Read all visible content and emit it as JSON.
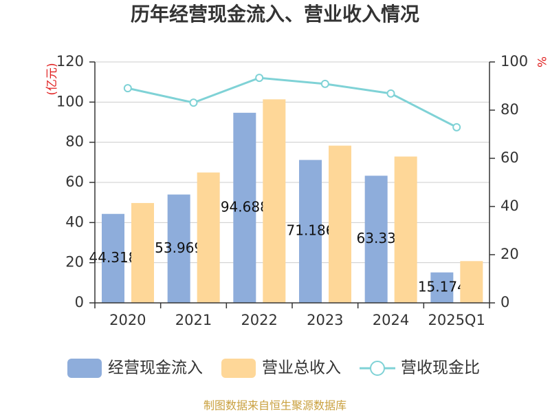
{
  "chart_data": {
    "type": "bar",
    "title": "历年经营现金流入、营业收入情况",
    "categories": [
      "2020",
      "2021",
      "2022",
      "2023",
      "2024",
      "2025Q1"
    ],
    "ylabel": "(亿元)",
    "ylabel_right": "%",
    "ylim": [
      0,
      120
    ],
    "ylim_right": [
      0,
      100
    ],
    "yticks": [
      0,
      20,
      40,
      60,
      80,
      100,
      120
    ],
    "yticks_right": [
      0,
      20,
      40,
      60,
      80,
      100
    ],
    "grid": true,
    "legend": "bottom",
    "series": [
      {
        "name": "经营现金流入",
        "type": "bar",
        "axis": "left",
        "color": "#8eaddb",
        "show_labels": true,
        "values": [
          44.318,
          53.969,
          94.688,
          71.186,
          63.33,
          15.174
        ]
      },
      {
        "name": "营业总收入",
        "type": "bar",
        "axis": "left",
        "color": "#fed798",
        "show_labels": false,
        "values": [
          49.74,
          64.94,
          101.38,
          78.31,
          72.88,
          20.81
        ]
      },
      {
        "name": "营收现金比",
        "type": "line",
        "axis": "right",
        "color": "#7fd2d6",
        "show_labels": false,
        "values": [
          89.1,
          83.1,
          93.4,
          90.9,
          86.9,
          72.9
        ]
      }
    ],
    "source_note": "制图数据来自恒生聚源数据库"
  },
  "colors": {
    "axis_title": "#e02020",
    "source_note": "#c9a03f"
  }
}
